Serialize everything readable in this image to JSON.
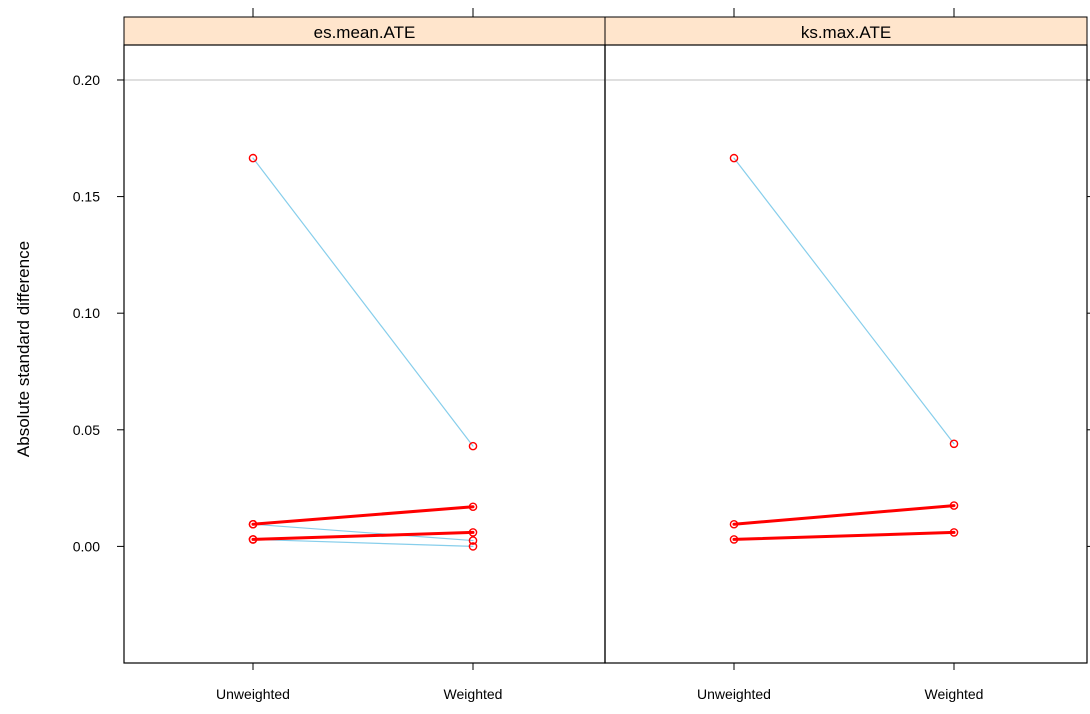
{
  "chart_data": {
    "type": "line",
    "ylabel": "Absolute standard difference",
    "xlabel": "",
    "categories": [
      "Unweighted",
      "Weighted"
    ],
    "ylim": [
      -0.05,
      0.215
    ],
    "yticks": [
      0.0,
      0.05,
      0.1,
      0.15,
      0.2
    ],
    "ytick_labels": [
      "0.00",
      "0.05",
      "0.10",
      "0.15",
      "0.20"
    ],
    "reference_line": 0.2,
    "strip_color": "#ffe5cc",
    "colors": {
      "significant": "#ff0000",
      "non_significant": "#87ceeb",
      "reference": "#cccccc"
    },
    "panels": [
      {
        "title": "es.mean.ATE",
        "series": [
          {
            "values": [
              0.1665,
              0.043
            ],
            "color": "#87ceeb",
            "bold": false
          },
          {
            "values": [
              0.003,
              0.0
            ],
            "color": "#87ceeb",
            "bold": false
          },
          {
            "values": [
              0.0095,
              0.0025
            ],
            "color": "#87ceeb",
            "bold": false
          },
          {
            "values": [
              0.0095,
              0.017
            ],
            "color": "#ff0000",
            "bold": true
          },
          {
            "values": [
              0.003,
              0.006
            ],
            "color": "#ff0000",
            "bold": true
          }
        ]
      },
      {
        "title": "ks.max.ATE",
        "series": [
          {
            "values": [
              0.1665,
              0.044
            ],
            "color": "#87ceeb",
            "bold": false
          },
          {
            "values": [
              0.0095,
              0.0175
            ],
            "color": "#ff0000",
            "bold": true
          },
          {
            "values": [
              0.003,
              0.006
            ],
            "color": "#ff0000",
            "bold": true
          }
        ]
      }
    ]
  }
}
